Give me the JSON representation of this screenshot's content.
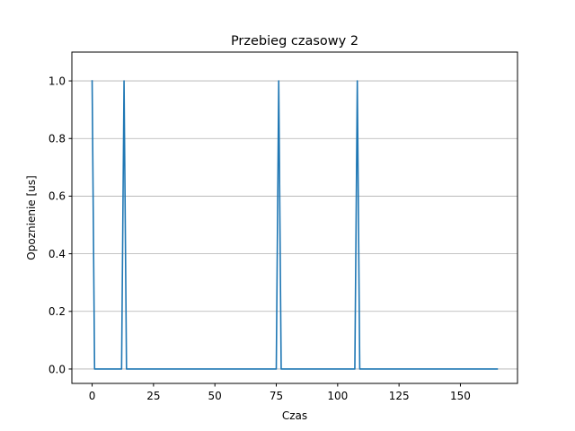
{
  "chart_data": {
    "type": "line",
    "title": "Przebieg czasowy 2",
    "xlabel": "Czas",
    "ylabel": "Opoznienie [us]",
    "xlim": [
      -8.25,
      173.25
    ],
    "ylim": [
      -0.05,
      1.1
    ],
    "x_ticks": [
      0,
      25,
      50,
      75,
      100,
      125,
      150
    ],
    "x_tick_labels": [
      "0",
      "25",
      "50",
      "75",
      "100",
      "125",
      "150"
    ],
    "y_ticks": [
      0.0,
      0.2,
      0.4,
      0.6,
      0.8,
      1.0
    ],
    "y_tick_labels": [
      "0.0",
      "0.2",
      "0.4",
      "0.6",
      "0.8",
      "1.0"
    ],
    "grid": "horizontal",
    "series": [
      {
        "color": "#1f77b4",
        "x": [
          0,
          1,
          12,
          13,
          14,
          75,
          76,
          77,
          107,
          108,
          109,
          165
        ],
        "y": [
          1,
          0,
          0,
          1,
          0,
          0,
          1,
          0,
          0,
          1,
          0,
          0
        ]
      }
    ]
  }
}
